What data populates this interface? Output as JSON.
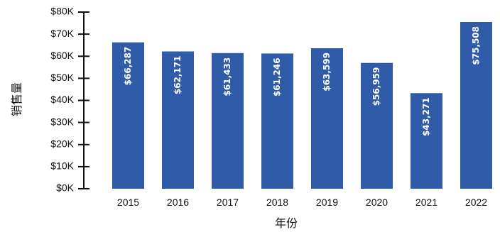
{
  "chart_data": {
    "type": "bar",
    "categories": [
      "2015",
      "2016",
      "2017",
      "2018",
      "2019",
      "2020",
      "2021",
      "2022"
    ],
    "values": [
      66287,
      62171,
      61433,
      61246,
      63599,
      56959,
      43271,
      75508
    ],
    "data_labels": [
      "$66,287",
      "$62,171",
      "$61,433",
      "$61,246",
      "$63,599",
      "$56,959",
      "$43,271",
      "$75,508"
    ],
    "xlabel": "年份",
    "ylabel": "销售量",
    "ylim": [
      0,
      80000
    ],
    "y_ticks": [
      0,
      10000,
      20000,
      30000,
      40000,
      50000,
      60000,
      70000,
      80000
    ],
    "y_tick_labels": [
      "$0K",
      "$10K",
      "$20K",
      "$30K",
      "$40K",
      "$50K",
      "$60K",
      "$70K",
      "$80K"
    ],
    "grid": false,
    "legend": "none",
    "colors": {
      "bar": "#2f5ba8",
      "axis": "#111111",
      "label_text": "#ffffff"
    }
  }
}
